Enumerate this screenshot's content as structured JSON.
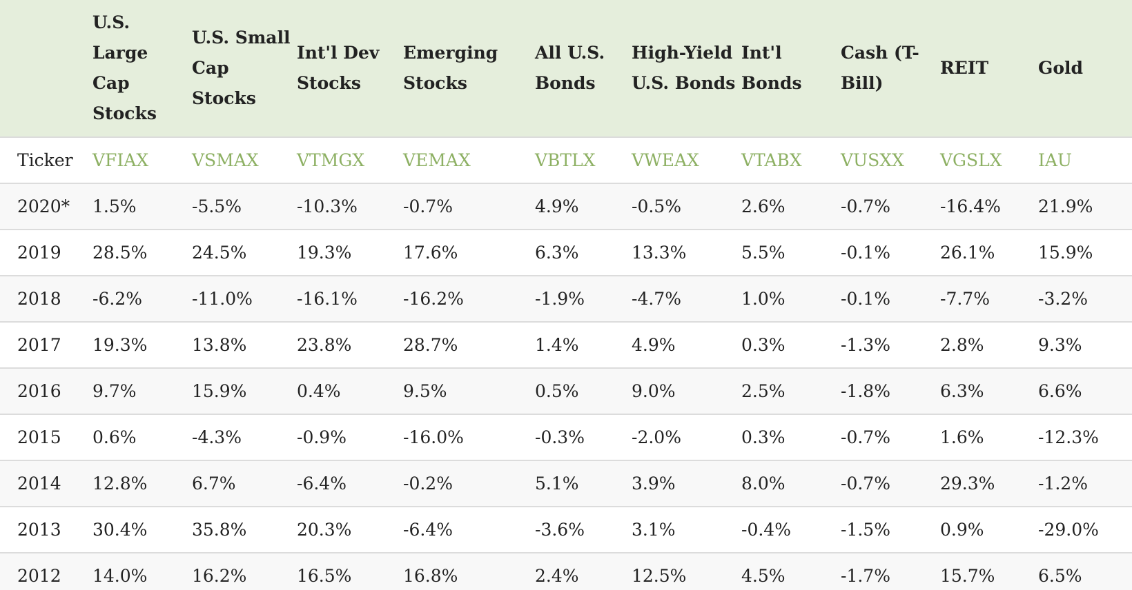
{
  "table": {
    "columns": [
      "U.S. Large Cap Stocks",
      "U.S. Small Cap Stocks",
      "Int'l Dev Stocks",
      "Emerging Stocks",
      "All U.S. Bonds",
      "High-Yield U.S. Bonds",
      "Int'l Bonds",
      "Cash (T-Bill)",
      "REIT",
      "Gold"
    ],
    "ticker_row": {
      "label": "Ticker",
      "values": [
        "VFIAX",
        "VSMAX",
        "VTMGX",
        "VEMAX",
        "VBTLX",
        "VWEAX",
        "VTABX",
        "VUSXX",
        "VGSLX",
        "IAU"
      ]
    },
    "rows": [
      {
        "year": "2020*",
        "values": [
          "1.5%",
          "-5.5%",
          "-10.3%",
          "-0.7%",
          "4.9%",
          "-0.5%",
          "2.6%",
          "-0.7%",
          "-16.4%",
          "21.9%"
        ]
      },
      {
        "year": "2019",
        "values": [
          "28.5%",
          "24.5%",
          "19.3%",
          "17.6%",
          "6.3%",
          "13.3%",
          "5.5%",
          "-0.1%",
          "26.1%",
          "15.9%"
        ]
      },
      {
        "year": "2018",
        "values": [
          "-6.2%",
          "-11.0%",
          "-16.1%",
          "-16.2%",
          "-1.9%",
          "-4.7%",
          "1.0%",
          "-0.1%",
          "-7.7%",
          "-3.2%"
        ]
      },
      {
        "year": "2017",
        "values": [
          "19.3%",
          "13.8%",
          "23.8%",
          "28.7%",
          "1.4%",
          "4.9%",
          "0.3%",
          "-1.3%",
          "2.8%",
          "9.3%"
        ]
      },
      {
        "year": "2016",
        "values": [
          "9.7%",
          "15.9%",
          "0.4%",
          "9.5%",
          "0.5%",
          "9.0%",
          "2.5%",
          "-1.8%",
          "6.3%",
          "6.6%"
        ]
      },
      {
        "year": "2015",
        "values": [
          "0.6%",
          "-4.3%",
          "-0.9%",
          "-16.0%",
          "-0.3%",
          "-2.0%",
          "0.3%",
          "-0.7%",
          "1.6%",
          "-12.3%"
        ]
      },
      {
        "year": "2014",
        "values": [
          "12.8%",
          "6.7%",
          "-6.4%",
          "-0.2%",
          "5.1%",
          "3.9%",
          "8.0%",
          "-0.7%",
          "29.3%",
          "-1.2%"
        ]
      },
      {
        "year": "2013",
        "values": [
          "30.4%",
          "35.8%",
          "20.3%",
          "-6.4%",
          "-3.6%",
          "3.1%",
          "-0.4%",
          "-1.5%",
          "0.9%",
          "-29.0%"
        ]
      },
      {
        "year": "2012",
        "values": [
          "14.0%",
          "16.2%",
          "16.5%",
          "16.8%",
          "2.4%",
          "12.5%",
          "4.5%",
          "-1.7%",
          "15.7%",
          "6.5%"
        ]
      }
    ]
  }
}
